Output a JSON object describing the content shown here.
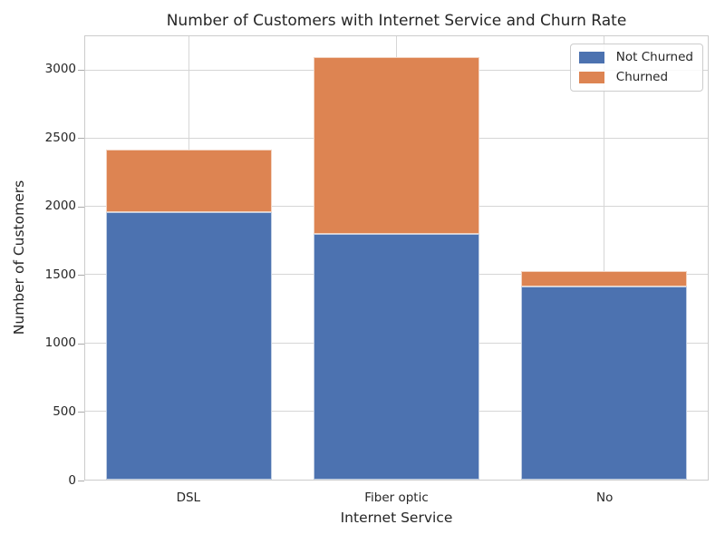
{
  "chart_data": {
    "type": "bar",
    "stacked": true,
    "title": "Number of Customers with Internet Service and Churn Rate",
    "xlabel": "Internet Service",
    "ylabel": "Number of Customers",
    "categories": [
      "DSL",
      "Fiber optic",
      "No"
    ],
    "series": [
      {
        "name": "Not Churned",
        "color": "#4C72B0",
        "values": [
          1962,
          1799,
          1413
        ]
      },
      {
        "name": "Churned",
        "color": "#DD8452",
        "values": [
          459,
          1297,
          113
        ]
      }
    ],
    "yticks": [
      0,
      500,
      1000,
      1500,
      2000,
      2500,
      3000
    ],
    "ylim": [
      0,
      3250
    ],
    "bar_width_fraction": 0.8,
    "legend": {
      "position": "upper right"
    },
    "grid": {
      "horizontal": true,
      "vertical": true
    },
    "colors": {
      "background": "#ffffff",
      "grid": "#d6d6d6",
      "spine": "#cccccc",
      "text": "#262626",
      "tick_mark": "#ababab"
    }
  }
}
